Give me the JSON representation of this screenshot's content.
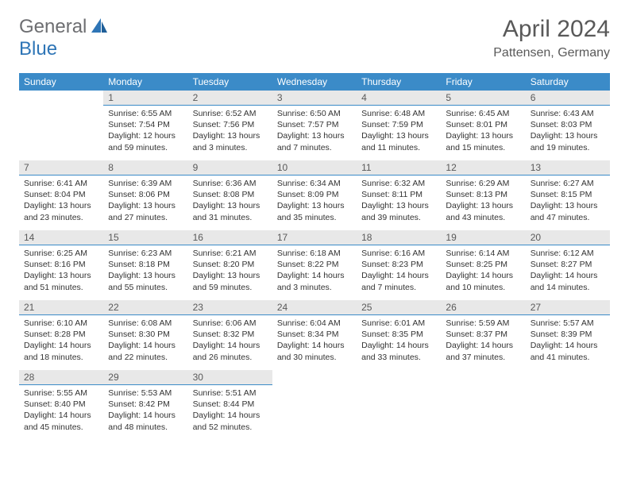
{
  "logo": {
    "text1": "General",
    "text2": "Blue"
  },
  "title": "April 2024",
  "location": "Pattensen, Germany",
  "colors": {
    "header_bg": "#3b8bc8",
    "header_text": "#ffffff",
    "daynum_bg": "#e8e8e8",
    "daynum_border": "#3b8bc8",
    "title_color": "#595959",
    "logo_gray": "#6d6e71",
    "logo_blue": "#2e75b6",
    "text": "#333333",
    "background": "#ffffff"
  },
  "typography": {
    "title_fontsize": 30,
    "subtitle_fontsize": 16,
    "dayheader_fontsize": 12,
    "daynum_fontsize": 12,
    "info_fontsize": 10.5
  },
  "day_headers": [
    "Sunday",
    "Monday",
    "Tuesday",
    "Wednesday",
    "Thursday",
    "Friday",
    "Saturday"
  ],
  "weeks": [
    [
      {
        "blank": true
      },
      {
        "n": "1",
        "sunrise": "6:55 AM",
        "sunset": "7:54 PM",
        "daylight": "12 hours and 59 minutes."
      },
      {
        "n": "2",
        "sunrise": "6:52 AM",
        "sunset": "7:56 PM",
        "daylight": "13 hours and 3 minutes."
      },
      {
        "n": "3",
        "sunrise": "6:50 AM",
        "sunset": "7:57 PM",
        "daylight": "13 hours and 7 minutes."
      },
      {
        "n": "4",
        "sunrise": "6:48 AM",
        "sunset": "7:59 PM",
        "daylight": "13 hours and 11 minutes."
      },
      {
        "n": "5",
        "sunrise": "6:45 AM",
        "sunset": "8:01 PM",
        "daylight": "13 hours and 15 minutes."
      },
      {
        "n": "6",
        "sunrise": "6:43 AM",
        "sunset": "8:03 PM",
        "daylight": "13 hours and 19 minutes."
      }
    ],
    [
      {
        "n": "7",
        "sunrise": "6:41 AM",
        "sunset": "8:04 PM",
        "daylight": "13 hours and 23 minutes."
      },
      {
        "n": "8",
        "sunrise": "6:39 AM",
        "sunset": "8:06 PM",
        "daylight": "13 hours and 27 minutes."
      },
      {
        "n": "9",
        "sunrise": "6:36 AM",
        "sunset": "8:08 PM",
        "daylight": "13 hours and 31 minutes."
      },
      {
        "n": "10",
        "sunrise": "6:34 AM",
        "sunset": "8:09 PM",
        "daylight": "13 hours and 35 minutes."
      },
      {
        "n": "11",
        "sunrise": "6:32 AM",
        "sunset": "8:11 PM",
        "daylight": "13 hours and 39 minutes."
      },
      {
        "n": "12",
        "sunrise": "6:29 AM",
        "sunset": "8:13 PM",
        "daylight": "13 hours and 43 minutes."
      },
      {
        "n": "13",
        "sunrise": "6:27 AM",
        "sunset": "8:15 PM",
        "daylight": "13 hours and 47 minutes."
      }
    ],
    [
      {
        "n": "14",
        "sunrise": "6:25 AM",
        "sunset": "8:16 PM",
        "daylight": "13 hours and 51 minutes."
      },
      {
        "n": "15",
        "sunrise": "6:23 AM",
        "sunset": "8:18 PM",
        "daylight": "13 hours and 55 minutes."
      },
      {
        "n": "16",
        "sunrise": "6:21 AM",
        "sunset": "8:20 PM",
        "daylight": "13 hours and 59 minutes."
      },
      {
        "n": "17",
        "sunrise": "6:18 AM",
        "sunset": "8:22 PM",
        "daylight": "14 hours and 3 minutes."
      },
      {
        "n": "18",
        "sunrise": "6:16 AM",
        "sunset": "8:23 PM",
        "daylight": "14 hours and 7 minutes."
      },
      {
        "n": "19",
        "sunrise": "6:14 AM",
        "sunset": "8:25 PM",
        "daylight": "14 hours and 10 minutes."
      },
      {
        "n": "20",
        "sunrise": "6:12 AM",
        "sunset": "8:27 PM",
        "daylight": "14 hours and 14 minutes."
      }
    ],
    [
      {
        "n": "21",
        "sunrise": "6:10 AM",
        "sunset": "8:28 PM",
        "daylight": "14 hours and 18 minutes."
      },
      {
        "n": "22",
        "sunrise": "6:08 AM",
        "sunset": "8:30 PM",
        "daylight": "14 hours and 22 minutes."
      },
      {
        "n": "23",
        "sunrise": "6:06 AM",
        "sunset": "8:32 PM",
        "daylight": "14 hours and 26 minutes."
      },
      {
        "n": "24",
        "sunrise": "6:04 AM",
        "sunset": "8:34 PM",
        "daylight": "14 hours and 30 minutes."
      },
      {
        "n": "25",
        "sunrise": "6:01 AM",
        "sunset": "8:35 PM",
        "daylight": "14 hours and 33 minutes."
      },
      {
        "n": "26",
        "sunrise": "5:59 AM",
        "sunset": "8:37 PM",
        "daylight": "14 hours and 37 minutes."
      },
      {
        "n": "27",
        "sunrise": "5:57 AM",
        "sunset": "8:39 PM",
        "daylight": "14 hours and 41 minutes."
      }
    ],
    [
      {
        "n": "28",
        "sunrise": "5:55 AM",
        "sunset": "8:40 PM",
        "daylight": "14 hours and 45 minutes."
      },
      {
        "n": "29",
        "sunrise": "5:53 AM",
        "sunset": "8:42 PM",
        "daylight": "14 hours and 48 minutes."
      },
      {
        "n": "30",
        "sunrise": "5:51 AM",
        "sunset": "8:44 PM",
        "daylight": "14 hours and 52 minutes."
      },
      {
        "blank": true
      },
      {
        "blank": true
      },
      {
        "blank": true
      },
      {
        "blank": true
      }
    ]
  ],
  "labels": {
    "sunrise_prefix": "Sunrise: ",
    "sunset_prefix": "Sunset: ",
    "daylight_prefix": "Daylight: "
  }
}
